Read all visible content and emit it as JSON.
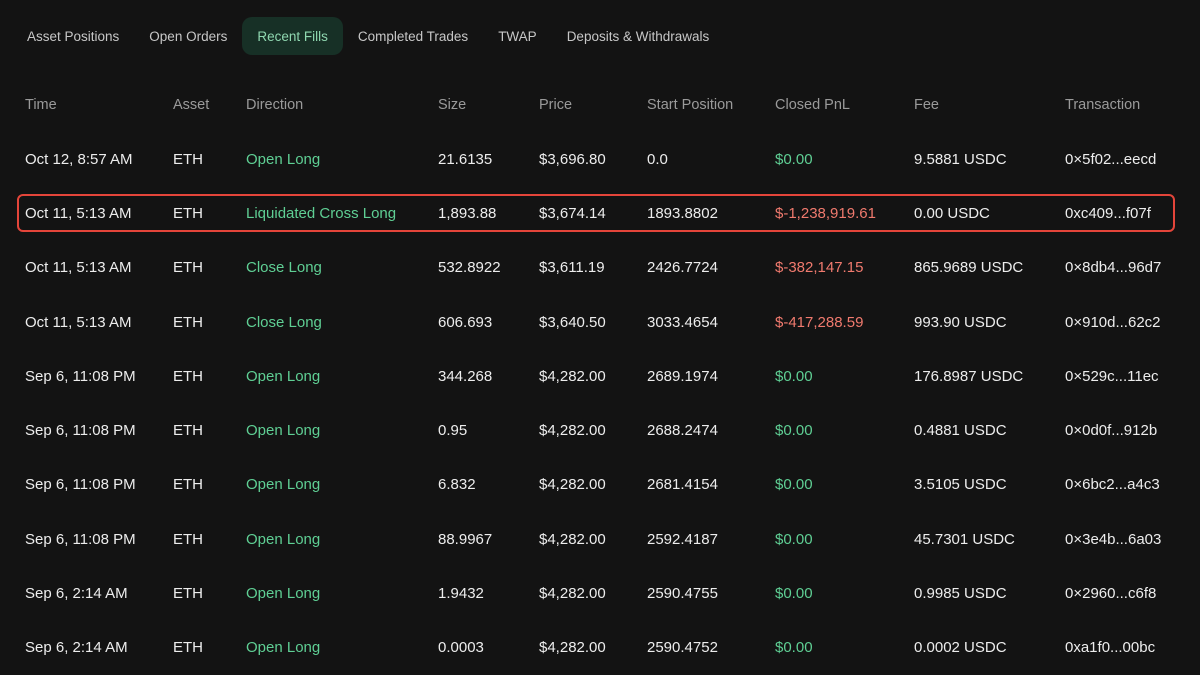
{
  "tabs": [
    {
      "label": "Asset Positions",
      "active": false
    },
    {
      "label": "Open Orders",
      "active": false
    },
    {
      "label": "Recent Fills",
      "active": true
    },
    {
      "label": "Completed Trades",
      "active": false
    },
    {
      "label": "TWAP",
      "active": false
    },
    {
      "label": "Deposits & Withdrawals",
      "active": false
    }
  ],
  "columns": {
    "time": "Time",
    "asset": "Asset",
    "direction": "Direction",
    "size": "Size",
    "price": "Price",
    "start_position": "Start Position",
    "closed_pnl": "Closed PnL",
    "fee": "Fee",
    "transaction": "Transaction"
  },
  "colors": {
    "accent_green": "#5fcf94",
    "loss_red": "#f07a6e",
    "highlight_border": "#e4453a"
  },
  "highlighted_row": 1,
  "rows": [
    {
      "time": "Oct 12, 8:57 AM",
      "asset": "ETH",
      "direction": "Open Long",
      "size": "21.6135",
      "price": "$3,696.80",
      "start_position": "0.0",
      "closed_pnl": "$0.00",
      "pnl_sign": "zero",
      "fee": "9.5881 USDC",
      "transaction": "0×5f02...eecd"
    },
    {
      "time": "Oct 11, 5:13 AM",
      "asset": "ETH",
      "direction": "Liquidated Cross Long",
      "size": "1,893.88",
      "price": "$3,674.14",
      "start_position": "1893.8802",
      "closed_pnl": "$-1,238,919.61",
      "pnl_sign": "neg",
      "fee": "0.00 USDC",
      "transaction": "0xc409...f07f"
    },
    {
      "time": "Oct 11, 5:13 AM",
      "asset": "ETH",
      "direction": "Close Long",
      "size": "532.8922",
      "price": "$3,611.19",
      "start_position": "2426.7724",
      "closed_pnl": "$-382,147.15",
      "pnl_sign": "neg",
      "fee": "865.9689 USDC",
      "transaction": "0×8db4...96d7"
    },
    {
      "time": "Oct 11, 5:13 AM",
      "asset": "ETH",
      "direction": "Close Long",
      "size": "606.693",
      "price": "$3,640.50",
      "start_position": "3033.4654",
      "closed_pnl": "$-417,288.59",
      "pnl_sign": "neg",
      "fee": "993.90 USDC",
      "transaction": "0×910d...62c2"
    },
    {
      "time": "Sep 6, 11:08 PM",
      "asset": "ETH",
      "direction": "Open Long",
      "size": "344.268",
      "price": "$4,282.00",
      "start_position": "2689.1974",
      "closed_pnl": "$0.00",
      "pnl_sign": "zero",
      "fee": "176.8987 USDC",
      "transaction": "0×529c...11ec"
    },
    {
      "time": "Sep 6, 11:08 PM",
      "asset": "ETH",
      "direction": "Open Long",
      "size": "0.95",
      "price": "$4,282.00",
      "start_position": "2688.2474",
      "closed_pnl": "$0.00",
      "pnl_sign": "zero",
      "fee": "0.4881 USDC",
      "transaction": "0×0d0f...912b"
    },
    {
      "time": "Sep 6, 11:08 PM",
      "asset": "ETH",
      "direction": "Open Long",
      "size": "6.832",
      "price": "$4,282.00",
      "start_position": "2681.4154",
      "closed_pnl": "$0.00",
      "pnl_sign": "zero",
      "fee": "3.5105 USDC",
      "transaction": "0×6bc2...a4c3"
    },
    {
      "time": "Sep 6, 11:08 PM",
      "asset": "ETH",
      "direction": "Open Long",
      "size": "88.9967",
      "price": "$4,282.00",
      "start_position": "2592.4187",
      "closed_pnl": "$0.00",
      "pnl_sign": "zero",
      "fee": "45.7301 USDC",
      "transaction": "0×3e4b...6a03"
    },
    {
      "time": "Sep 6, 2:14 AM",
      "asset": "ETH",
      "direction": "Open Long",
      "size": "1.9432",
      "price": "$4,282.00",
      "start_position": "2590.4755",
      "closed_pnl": "$0.00",
      "pnl_sign": "zero",
      "fee": "0.9985 USDC",
      "transaction": "0×2960...c6f8"
    },
    {
      "time": "Sep 6, 2:14 AM",
      "asset": "ETH",
      "direction": "Open Long",
      "size": "0.0003",
      "price": "$4,282.00",
      "start_position": "2590.4752",
      "closed_pnl": "$0.00",
      "pnl_sign": "zero",
      "fee": "0.0002 USDC",
      "transaction": "0xa1f0...00bc"
    }
  ]
}
